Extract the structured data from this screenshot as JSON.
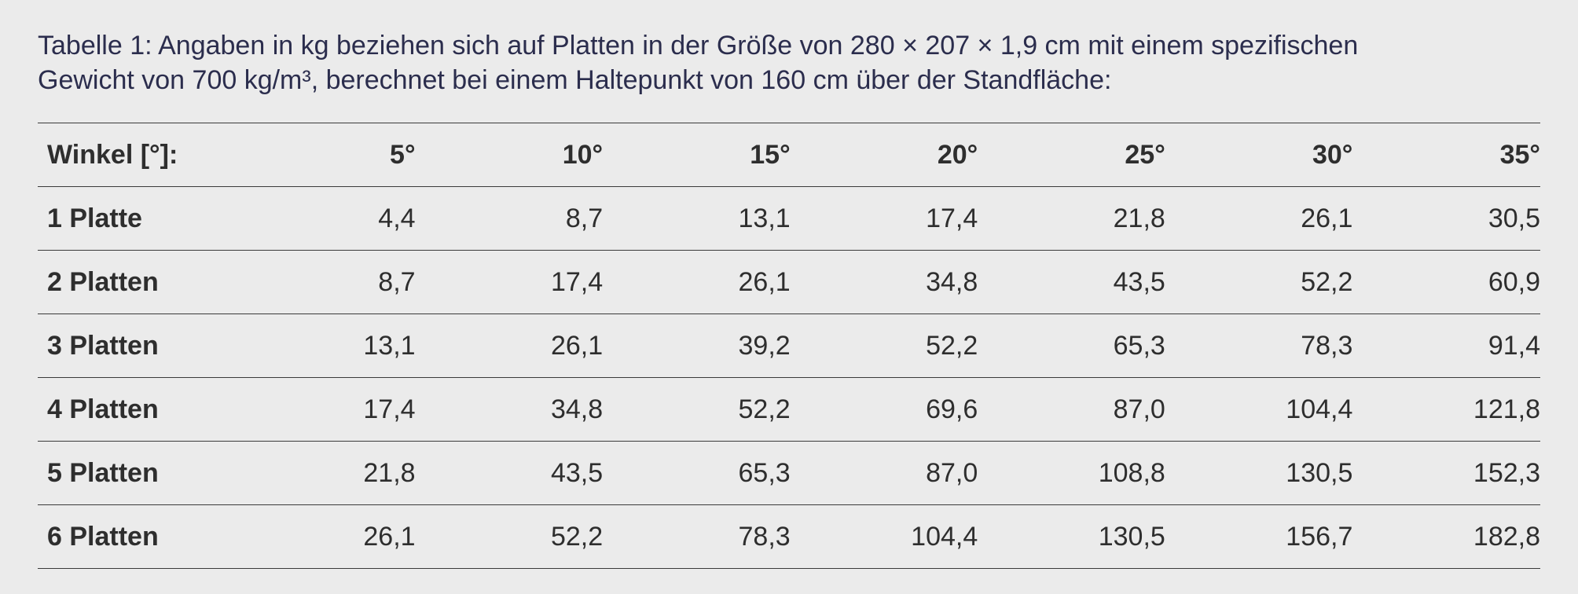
{
  "caption": {
    "line1": "Tabelle 1: Angaben in kg beziehen sich auf Platten in der Größe von 280 × 207 × 1,9 cm mit einem spezifischen",
    "line2": "Gewicht von 700 kg/m³, berechnet bei einem Haltepunkt von 160 cm über der Standfläche:"
  },
  "table": {
    "corner_label": "Winkel [°]:",
    "columns": [
      "5°",
      "10°",
      "15°",
      "20°",
      "25°",
      "30°",
      "35°"
    ],
    "rows": [
      {
        "label": "1 Platte",
        "values": [
          "4,4",
          "8,7",
          "13,1",
          "17,4",
          "21,8",
          "26,1",
          "30,5"
        ]
      },
      {
        "label": "2 Platten",
        "values": [
          "8,7",
          "17,4",
          "26,1",
          "34,8",
          "43,5",
          "52,2",
          "60,9"
        ]
      },
      {
        "label": "3 Platten",
        "values": [
          "13,1",
          "26,1",
          "39,2",
          "52,2",
          "65,3",
          "78,3",
          "91,4"
        ]
      },
      {
        "label": "4 Platten",
        "values": [
          "17,4",
          "34,8",
          "52,2",
          "69,6",
          "87,0",
          "104,4",
          "121,8"
        ]
      },
      {
        "label": "5 Platten",
        "values": [
          "21,8",
          "43,5",
          "65,3",
          "87,0",
          "108,8",
          "130,5",
          "152,3"
        ]
      },
      {
        "label": "6 Platten",
        "values": [
          "26,1",
          "52,2",
          "78,3",
          "104,4",
          "130,5",
          "156,7",
          "182,8"
        ]
      }
    ]
  }
}
